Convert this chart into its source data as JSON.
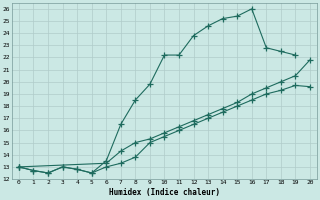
{
  "xlabel": "Humidex (Indice chaleur)",
  "bg_color": "#cbe8e4",
  "grid_color": "#b0ccca",
  "line_color": "#1e6b5e",
  "xlim": [
    -0.5,
    20.5
  ],
  "ylim": [
    12,
    26.5
  ],
  "xticks": [
    0,
    1,
    2,
    3,
    4,
    5,
    6,
    7,
    8,
    9,
    10,
    11,
    12,
    13,
    14,
    15,
    16,
    17,
    18,
    19,
    20
  ],
  "yticks": [
    12,
    13,
    14,
    15,
    16,
    17,
    18,
    19,
    20,
    21,
    22,
    23,
    24,
    25,
    26
  ],
  "line1_x": [
    0,
    1,
    2,
    3,
    4,
    5,
    6,
    7,
    8,
    9,
    10,
    11,
    12,
    13,
    14,
    15,
    16,
    17,
    18,
    19
  ],
  "line1_y": [
    13,
    12.7,
    12.5,
    13.0,
    12.8,
    12.5,
    13.5,
    16.5,
    18.5,
    19.8,
    22.2,
    22.2,
    23.8,
    24.6,
    25.2,
    25.4,
    26.0,
    22.8,
    22.5,
    22.2
  ],
  "line2_x": [
    0,
    6,
    7,
    8,
    9,
    10,
    11,
    12,
    13,
    14,
    15,
    16,
    17,
    18,
    19,
    20
  ],
  "line2_y": [
    13,
    13.3,
    14.3,
    15.0,
    15.3,
    15.8,
    16.3,
    16.8,
    17.3,
    17.8,
    18.3,
    19.0,
    19.5,
    20.0,
    20.5,
    21.8
  ],
  "line3_x": [
    0,
    1,
    2,
    3,
    4,
    5,
    6,
    7,
    8,
    9,
    10,
    11,
    12,
    13,
    14,
    15,
    16,
    17,
    18,
    19,
    20
  ],
  "line3_y": [
    13,
    12.7,
    12.5,
    13.0,
    12.8,
    12.5,
    13.0,
    13.3,
    13.8,
    15.0,
    15.5,
    16.0,
    16.5,
    17.0,
    17.5,
    18.0,
    18.5,
    19.0,
    19.3,
    19.7,
    19.6
  ]
}
